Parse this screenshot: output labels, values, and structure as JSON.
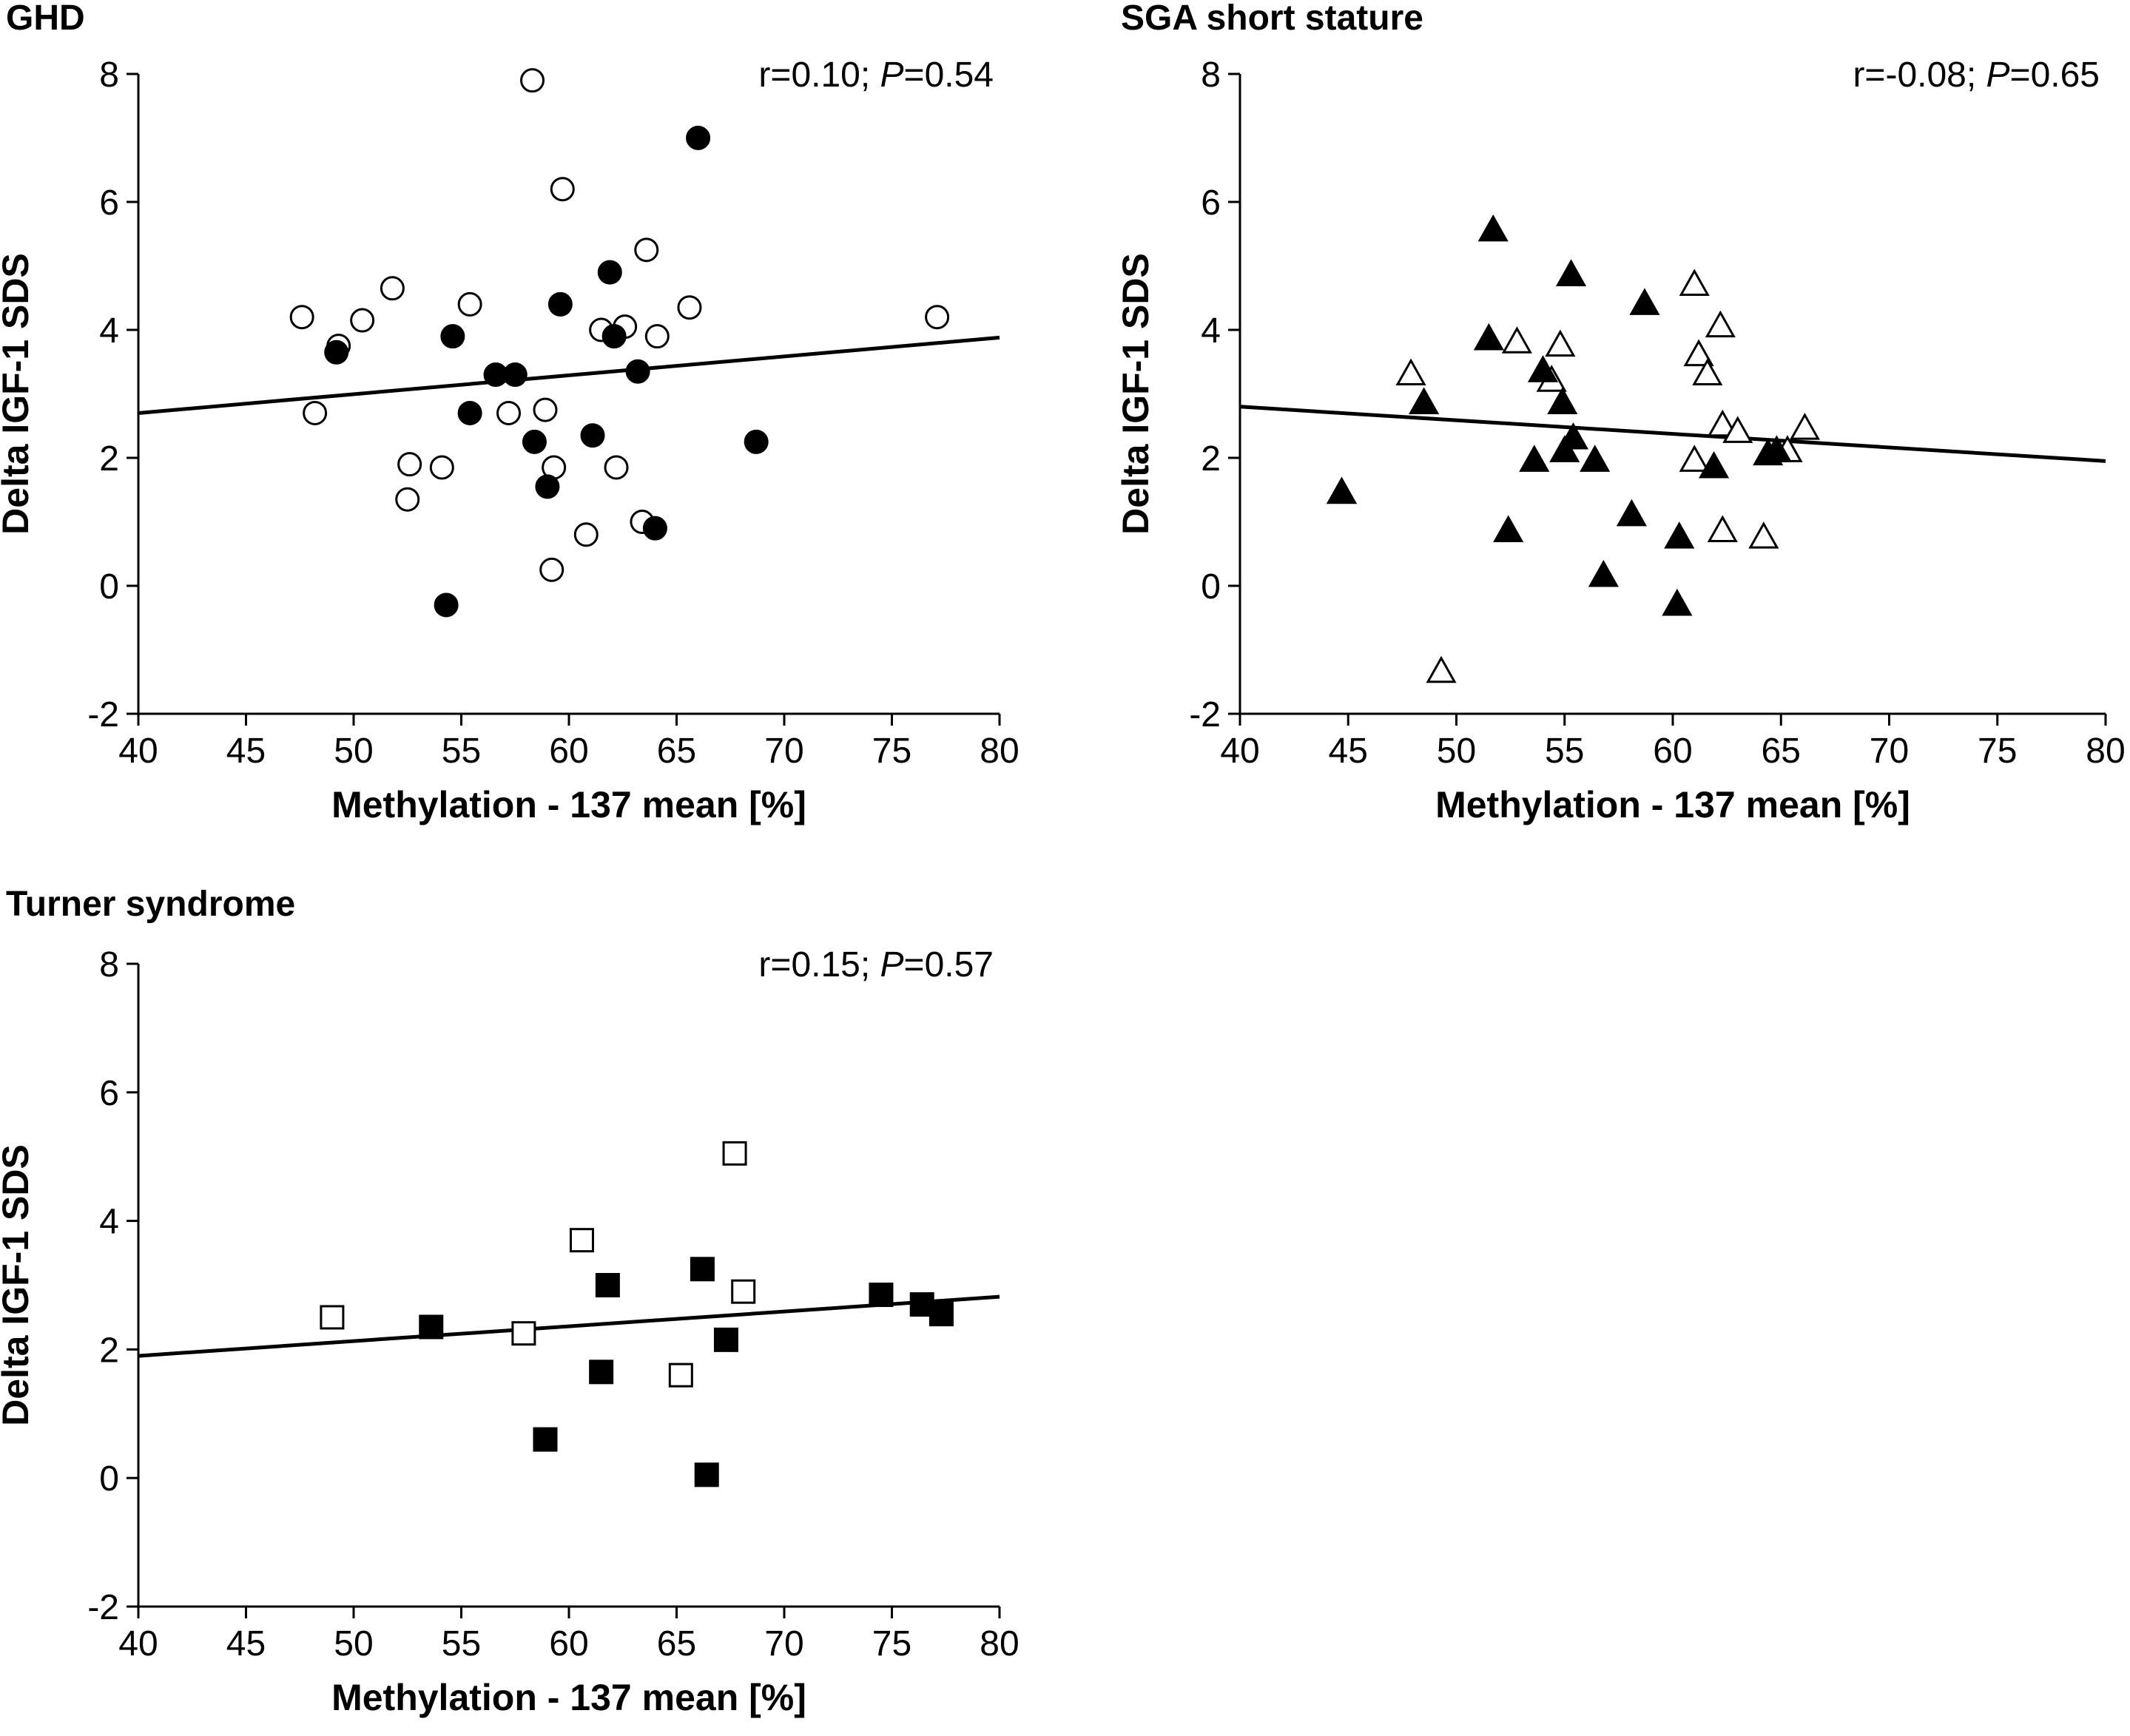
{
  "chart_data": [
    {
      "type": "scatter",
      "title": "GHD",
      "xlabel": "Methylation - 137 mean [%]",
      "ylabel": "Delta IGF-1 SDS",
      "xlim": [
        40,
        80
      ],
      "ylim": [
        -2,
        8
      ],
      "xticks": [
        40,
        45,
        50,
        55,
        60,
        65,
        70,
        75,
        80
      ],
      "yticks": [
        -2,
        0,
        2,
        4,
        6,
        8
      ],
      "annotation": {
        "prefix": "r=0.10; ",
        "p_symbol": "P",
        "suffix": "=0.54"
      },
      "marker": "circle",
      "series": [
        {
          "name": "open",
          "filled": false,
          "points": [
            [
              58.3,
              7.9
            ],
            [
              59.7,
              6.2
            ],
            [
              63.6,
              5.25
            ],
            [
              51.8,
              4.65
            ],
            [
              55.4,
              4.4
            ],
            [
              65.6,
              4.35
            ],
            [
              47.6,
              4.2
            ],
            [
              50.4,
              4.15
            ],
            [
              77.1,
              4.2
            ],
            [
              61.5,
              4.0
            ],
            [
              62.6,
              4.05
            ],
            [
              64.1,
              3.9
            ],
            [
              49.3,
              3.75
            ],
            [
              48.2,
              2.7
            ],
            [
              57.2,
              2.7
            ],
            [
              58.9,
              2.75
            ],
            [
              52.6,
              1.9
            ],
            [
              54.1,
              1.85
            ],
            [
              59.3,
              1.85
            ],
            [
              62.2,
              1.85
            ],
            [
              52.5,
              1.35
            ],
            [
              63.4,
              1.0
            ],
            [
              60.8,
              0.8
            ],
            [
              59.2,
              0.25
            ]
          ]
        },
        {
          "name": "filled",
          "filled": true,
          "points": [
            [
              66.0,
              7.0
            ],
            [
              61.9,
              4.9
            ],
            [
              59.6,
              4.4
            ],
            [
              62.1,
              3.9
            ],
            [
              54.6,
              3.9
            ],
            [
              49.2,
              3.65
            ],
            [
              56.6,
              3.3
            ],
            [
              57.5,
              3.3
            ],
            [
              63.2,
              3.35
            ],
            [
              55.4,
              2.7
            ],
            [
              58.4,
              2.25
            ],
            [
              61.1,
              2.35
            ],
            [
              68.7,
              2.25
            ],
            [
              59.0,
              1.55
            ],
            [
              64.0,
              0.9
            ],
            [
              54.3,
              -0.3
            ]
          ]
        }
      ],
      "regression": {
        "x": [
          40,
          80
        ],
        "y": [
          2.7,
          3.88
        ]
      }
    },
    {
      "type": "scatter",
      "title": "SGA short stature",
      "xlabel": "Methylation - 137 mean [%]",
      "ylabel": "Delta IGF-1 SDS",
      "xlim": [
        40,
        80
      ],
      "ylim": [
        -2,
        8
      ],
      "xticks": [
        40,
        45,
        50,
        55,
        60,
        65,
        70,
        75,
        80
      ],
      "yticks": [
        -2,
        0,
        2,
        4,
        6,
        8
      ],
      "annotation": {
        "prefix": "r=-0.08; ",
        "p_symbol": "P",
        "suffix": "=0.65"
      },
      "marker": "triangle",
      "series": [
        {
          "name": "open",
          "filled": false,
          "points": [
            [
              61.0,
              4.7
            ],
            [
              62.2,
              4.05
            ],
            [
              52.8,
              3.8
            ],
            [
              54.8,
              3.75
            ],
            [
              61.2,
              3.6
            ],
            [
              61.6,
              3.3
            ],
            [
              47.9,
              3.3
            ],
            [
              54.4,
              3.2
            ],
            [
              62.3,
              2.5
            ],
            [
              63.0,
              2.4
            ],
            [
              66.1,
              2.45
            ],
            [
              65.3,
              2.1
            ],
            [
              61.0,
              1.95
            ],
            [
              44.7,
              1.45
            ],
            [
              62.3,
              0.85
            ],
            [
              64.2,
              0.75
            ],
            [
              49.3,
              -1.35
            ]
          ]
        },
        {
          "name": "filled",
          "filled": true,
          "points": [
            [
              51.7,
              5.55
            ],
            [
              55.3,
              4.85
            ],
            [
              58.7,
              4.4
            ],
            [
              51.5,
              3.85
            ],
            [
              54.0,
              3.35
            ],
            [
              54.9,
              2.85
            ],
            [
              48.5,
              2.85
            ],
            [
              55.4,
              2.3
            ],
            [
              55.0,
              2.1
            ],
            [
              53.6,
              1.95
            ],
            [
              56.4,
              1.95
            ],
            [
              61.9,
              1.85
            ],
            [
              64.4,
              2.05
            ],
            [
              64.8,
              2.1
            ],
            [
              44.7,
              1.45
            ],
            [
              58.1,
              1.1
            ],
            [
              52.4,
              0.85
            ],
            [
              60.3,
              0.75
            ],
            [
              56.8,
              0.15
            ],
            [
              60.2,
              -0.3
            ]
          ]
        }
      ],
      "regression": {
        "x": [
          40,
          80
        ],
        "y": [
          2.8,
          1.95
        ]
      }
    },
    {
      "type": "scatter",
      "title": "Turner syndrome",
      "xlabel": "Methylation - 137 mean [%]",
      "ylabel": "Delta IGF-1 SDS",
      "xlim": [
        40,
        80
      ],
      "ylim": [
        -2,
        8
      ],
      "xticks": [
        40,
        45,
        50,
        55,
        60,
        65,
        70,
        75,
        80
      ],
      "yticks": [
        -2,
        0,
        2,
        4,
        6,
        8
      ],
      "annotation": {
        "prefix": "r=0.15; ",
        "p_symbol": "P",
        "suffix": "=0.57"
      },
      "marker": "square",
      "series": [
        {
          "name": "open",
          "filled": false,
          "points": [
            [
              67.7,
              5.05
            ],
            [
              60.6,
              3.7
            ],
            [
              68.1,
              2.9
            ],
            [
              49.0,
              2.5
            ],
            [
              57.9,
              2.25
            ],
            [
              65.2,
              1.6
            ]
          ]
        },
        {
          "name": "filled",
          "filled": true,
          "points": [
            [
              66.2,
              3.25
            ],
            [
              61.8,
              3.0
            ],
            [
              74.5,
              2.85
            ],
            [
              76.4,
              2.7
            ],
            [
              77.3,
              2.55
            ],
            [
              53.6,
              2.35
            ],
            [
              67.3,
              2.15
            ],
            [
              61.5,
              1.65
            ],
            [
              58.9,
              0.6
            ],
            [
              66.4,
              0.05
            ]
          ]
        }
      ],
      "regression": {
        "x": [
          40,
          80
        ],
        "y": [
          1.9,
          2.82
        ]
      }
    }
  ]
}
